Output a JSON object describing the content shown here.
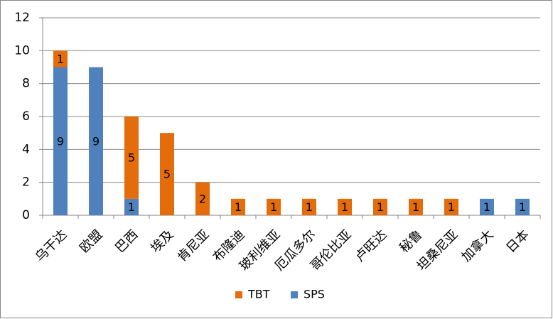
{
  "chart_data": {
    "type": "bar",
    "stacked": true,
    "categories": [
      "乌干达",
      "欧盟",
      "巴西",
      "埃及",
      "肯尼亚",
      "布隆迪",
      "玻利维亚",
      "厄瓜多尔",
      "哥伦比亚",
      "卢旺达",
      "秘鲁",
      "坦桑尼亚",
      "加拿大",
      "日本"
    ],
    "series": [
      {
        "name": "SPS",
        "color": "#4F81BD",
        "values": [
          9,
          9,
          1,
          0,
          0,
          0,
          0,
          0,
          0,
          0,
          0,
          0,
          1,
          1
        ]
      },
      {
        "name": "TBT",
        "color": "#E46C0A",
        "values": [
          1,
          0,
          5,
          5,
          2,
          1,
          1,
          1,
          1,
          1,
          1,
          1,
          0,
          0
        ]
      }
    ],
    "ylim": [
      0,
      12
    ],
    "yticks": [
      0,
      2,
      4,
      6,
      8,
      10,
      12
    ],
    "grid": true,
    "data_labels": true,
    "legend_position": "bottom",
    "gridline_color": "#898989",
    "border_color": "#868686"
  }
}
